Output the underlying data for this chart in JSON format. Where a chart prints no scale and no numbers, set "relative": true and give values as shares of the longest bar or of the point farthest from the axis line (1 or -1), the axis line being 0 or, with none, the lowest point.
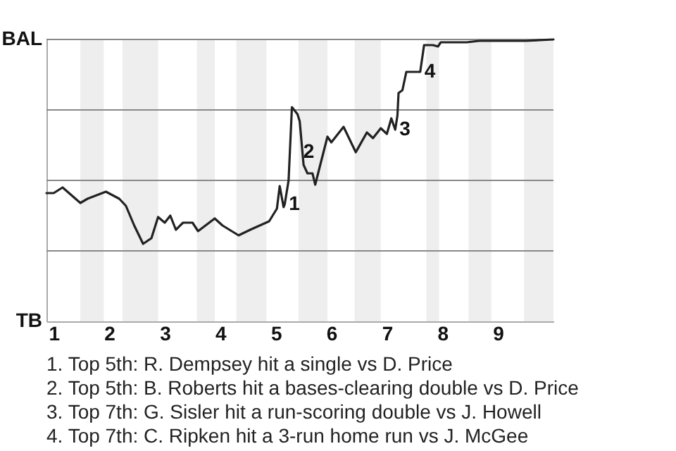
{
  "chart_data": {
    "type": "line",
    "relative": true,
    "xlim": [
      0.87,
      10
    ],
    "xticks": [
      1,
      2,
      3,
      4,
      5,
      6,
      7,
      8,
      9
    ],
    "marker": "none",
    "line_style": "solid",
    "x": [
      0.87,
      1,
      1.16,
      1.48,
      1.61,
      1.94,
      2.18,
      2.3,
      2.45,
      2.61,
      2.76,
      2.88,
      3,
      3.1,
      3.2,
      3.33,
      3.5,
      3.6,
      3.9,
      4.04,
      4.33,
      4.54,
      4.88,
      5.02,
      5.07,
      5.14,
      5.16,
      5.23,
      5.29,
      5.39,
      5.43,
      5.5,
      5.57,
      5.66,
      5.71,
      5.8,
      5.93,
      6,
      6.22,
      6.44,
      6.64,
      6.75,
      6.89,
      7,
      7.08,
      7.15,
      7.19,
      7.21,
      7.28,
      7.35,
      7.6,
      7.67,
      7.83,
      7.92,
      7.97,
      8.44,
      8.66,
      9.5,
      10
    ],
    "series": [
      {
        "color": "#222222",
        "values": [
          0.455,
          0.455,
          0.475,
          0.42,
          0.435,
          0.46,
          0.435,
          0.41,
          0.34,
          0.275,
          0.295,
          0.37,
          0.35,
          0.375,
          0.325,
          0.35,
          0.35,
          0.32,
          0.365,
          0.34,
          0.305,
          0.325,
          0.355,
          0.4,
          0.48,
          0.405,
          0.415,
          0.5,
          0.76,
          0.735,
          0.71,
          0.555,
          0.525,
          0.525,
          0.485,
          0.555,
          0.655,
          0.635,
          0.69,
          0.6,
          0.67,
          0.65,
          0.685,
          0.665,
          0.72,
          0.68,
          0.73,
          0.81,
          0.82,
          0.885,
          0.885,
          0.98,
          0.98,
          0.975,
          0.99,
          0.99,
          0.995,
          0.995,
          1
        ]
      }
    ],
    "ref_lines": [
      {
        "axis": "y",
        "value": 0.25,
        "color": "#888888"
      },
      {
        "axis": "y",
        "value": 0.5,
        "color": "#888888"
      },
      {
        "axis": "y",
        "value": 0.75,
        "color": "#888888"
      },
      {
        "axis": "y",
        "value": 1,
        "color": "#888888"
      }
    ],
    "bands": [
      {
        "axis": "x",
        "from": 1.48,
        "to": 1.9,
        "color": "#eeeeee"
      },
      {
        "axis": "x",
        "from": 2.24,
        "to": 2.88,
        "color": "#eeeeee"
      },
      {
        "axis": "x",
        "from": 3.58,
        "to": 3.9,
        "color": "#eeeeee"
      },
      {
        "axis": "x",
        "from": 4.29,
        "to": 4.83,
        "color": "#eeeeee"
      },
      {
        "axis": "x",
        "from": 5.41,
        "to": 5.93,
        "color": "#eeeeee"
      },
      {
        "axis": "x",
        "from": 6.42,
        "to": 6.89,
        "color": "#eeeeee"
      },
      {
        "axis": "x",
        "from": 7.71,
        "to": 7.94,
        "color": "#eeeeee"
      },
      {
        "axis": "x",
        "from": 8.47,
        "to": 8.88,
        "color": "#eeeeee"
      },
      {
        "axis": "x",
        "from": 9.47,
        "to": 10,
        "color": "#eeeeee"
      }
    ],
    "annotations": [
      "BAL",
      "TB",
      {
        "text": "1",
        "x": 5.16,
        "y": 0.415
      },
      {
        "text": "2",
        "x": 5.42,
        "y": 0.6
      },
      {
        "text": "3",
        "x": 7.15,
        "y": 0.68
      },
      {
        "text": "4",
        "x": 7.6,
        "y": 0.885
      },
      "1. Top 5th: R. Dempsey hit a single vs D. Price",
      "2. Top 5th: B. Roberts hit a bases-clearing double vs D. Price",
      "3. Top 7th: G. Sisler hit a run-scoring double vs J. Howell",
      "4. Top 7th: C. Ripken hit a 3-run home run vs J. McGee"
    ]
  }
}
